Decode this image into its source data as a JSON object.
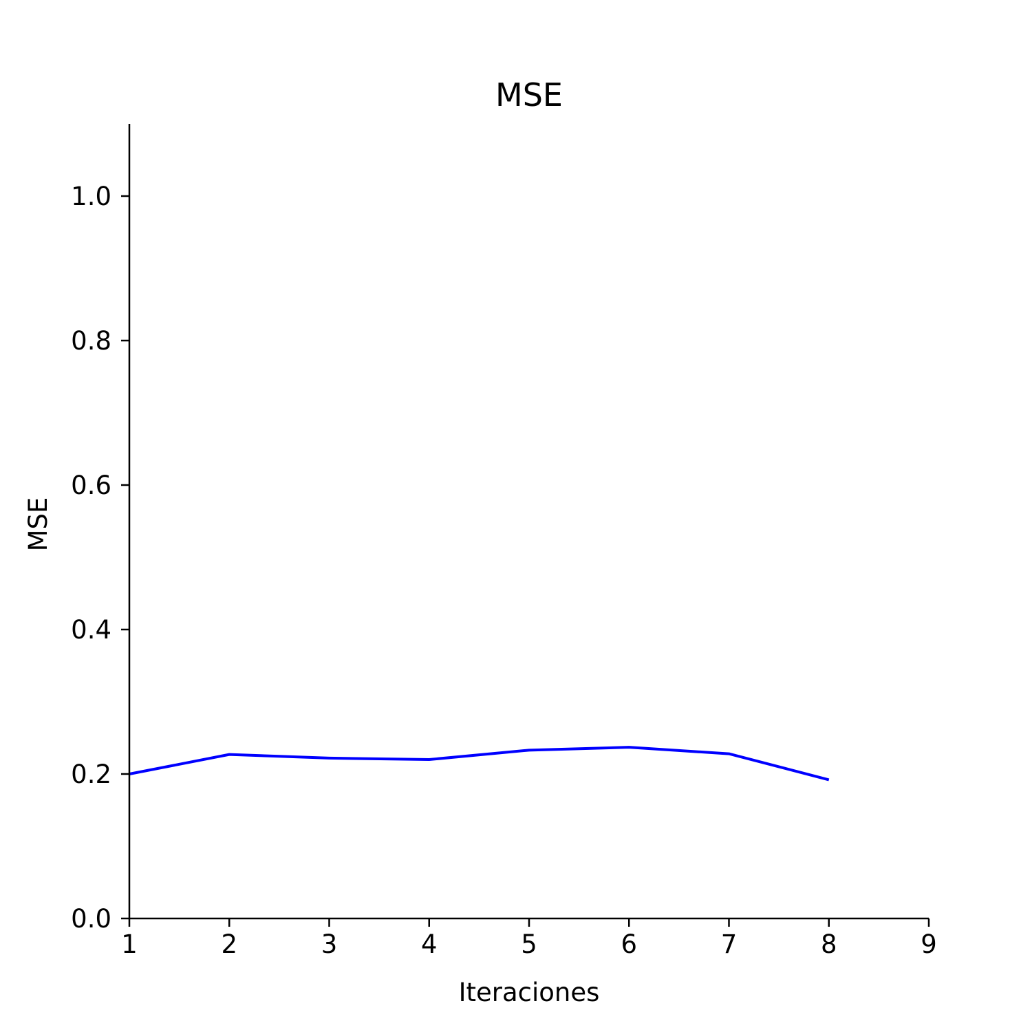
{
  "chart_data": {
    "type": "line",
    "title": "MSE",
    "xlabel": "Iteraciones",
    "ylabel": "MSE",
    "xlim": [
      1,
      9
    ],
    "ylim": [
      0,
      1.1
    ],
    "xticks": [
      1,
      2,
      3,
      4,
      5,
      6,
      7,
      8,
      9
    ],
    "xtick_labels": [
      "1",
      "2",
      "3",
      "4",
      "5",
      "6",
      "7",
      "8",
      "9"
    ],
    "yticks": [
      0.0,
      0.2,
      0.4,
      0.6,
      0.8,
      1.0
    ],
    "ytick_labels": [
      "0.0",
      "0.2",
      "0.4",
      "0.6",
      "0.8",
      "1.0"
    ],
    "grid": false,
    "series": [
      {
        "color": "#0000ff",
        "x": [
          1,
          2,
          3,
          4,
          5,
          6,
          7,
          8
        ],
        "y": [
          0.2,
          0.227,
          0.222,
          0.22,
          0.233,
          0.237,
          0.228,
          0.192
        ]
      }
    ]
  }
}
